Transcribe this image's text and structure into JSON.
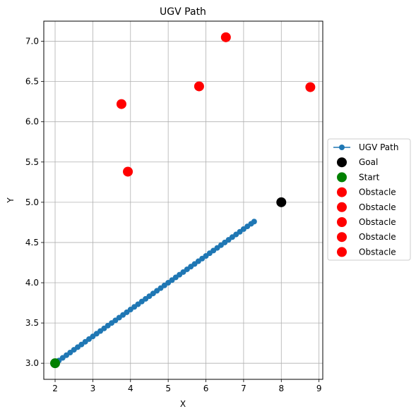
{
  "chart_data": {
    "type": "scatter",
    "title": "UGV Path",
    "xlabel": "X",
    "ylabel": "Y",
    "xlim": [
      1.7,
      9.1
    ],
    "ylim": [
      2.8,
      7.25
    ],
    "xticks": [
      2,
      3,
      4,
      5,
      6,
      7,
      8,
      9
    ],
    "xtick_labels": [
      "2",
      "3",
      "4",
      "5",
      "6",
      "7",
      "8",
      "9"
    ],
    "yticks": [
      3.0,
      3.5,
      4.0,
      4.5,
      5.0,
      5.5,
      6.0,
      6.5,
      7.0
    ],
    "ytick_labels": [
      "3.0",
      "3.5",
      "4.0",
      "4.5",
      "5.0",
      "5.5",
      "6.0",
      "6.5",
      "7.0"
    ],
    "grid": true,
    "legend_position": "center-right, outside plot",
    "series": [
      {
        "name": "UGV Path",
        "kind": "line-with-markers",
        "color": "#1f77b4",
        "x": [
          2.0,
          2.1,
          2.2,
          2.3,
          2.4,
          2.5,
          2.6,
          2.7,
          2.8,
          2.9,
          3.0,
          3.1,
          3.2,
          3.3,
          3.4,
          3.5,
          3.6,
          3.7,
          3.8,
          3.9,
          4.0,
          4.1,
          4.2,
          4.3,
          4.4,
          4.5,
          4.6,
          4.7,
          4.8,
          4.9,
          5.0,
          5.1,
          5.2,
          5.3,
          5.4,
          5.5,
          5.6,
          5.7,
          5.8,
          5.9,
          6.0,
          6.1,
          6.2,
          6.3,
          6.4,
          6.5,
          6.6,
          6.7,
          6.8,
          6.9,
          7.0,
          7.1,
          7.2,
          7.28
        ],
        "y": [
          3.0,
          3.033,
          3.067,
          3.1,
          3.133,
          3.167,
          3.2,
          3.233,
          3.267,
          3.3,
          3.333,
          3.367,
          3.4,
          3.433,
          3.467,
          3.5,
          3.533,
          3.567,
          3.6,
          3.633,
          3.667,
          3.7,
          3.733,
          3.767,
          3.8,
          3.833,
          3.867,
          3.9,
          3.933,
          3.967,
          4.0,
          4.033,
          4.067,
          4.1,
          4.133,
          4.167,
          4.2,
          4.233,
          4.267,
          4.3,
          4.333,
          4.367,
          4.4,
          4.433,
          4.467,
          4.5,
          4.533,
          4.567,
          4.6,
          4.633,
          4.667,
          4.7,
          4.733,
          4.76
        ]
      },
      {
        "name": "Goal",
        "kind": "point",
        "color": "#000000",
        "x": [
          8.0
        ],
        "y": [
          5.0
        ]
      },
      {
        "name": "Start",
        "kind": "point",
        "color": "#008000",
        "x": [
          2.0
        ],
        "y": [
          3.0
        ]
      },
      {
        "name": "Obstacle",
        "kind": "point",
        "color": "#ff0000",
        "x": [
          3.93
        ],
        "y": [
          5.38
        ]
      },
      {
        "name": "Obstacle",
        "kind": "point",
        "color": "#ff0000",
        "x": [
          3.76
        ],
        "y": [
          6.22
        ]
      },
      {
        "name": "Obstacle",
        "kind": "point",
        "color": "#ff0000",
        "x": [
          6.53
        ],
        "y": [
          7.05
        ]
      },
      {
        "name": "Obstacle",
        "kind": "point",
        "color": "#ff0000",
        "x": [
          5.82
        ],
        "y": [
          6.44
        ]
      },
      {
        "name": "Obstacle",
        "kind": "point",
        "color": "#ff0000",
        "x": [
          8.77
        ],
        "y": [
          6.43
        ]
      }
    ]
  }
}
